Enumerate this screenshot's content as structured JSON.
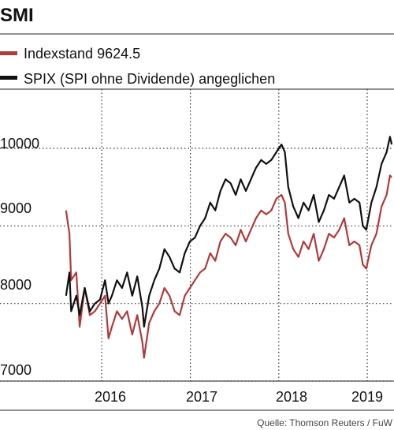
{
  "chart_data": {
    "type": "line",
    "title": "SMI",
    "xlabel": "",
    "ylabel": "",
    "ylim": [
      7000,
      10500
    ],
    "xlim": [
      "2015-08-01",
      "2019-04-15"
    ],
    "y_ticks": [
      "10000",
      "9000",
      "8000",
      "7000"
    ],
    "x_tick_labels": [
      "2016",
      "2017",
      "2018",
      "2019"
    ],
    "grid": "dotted",
    "legend_position": "top-left",
    "source": "Quelle: Thomson Reuters / FuW",
    "series": [
      {
        "name": "Indexstand 9624.5",
        "color": "#b03a3a",
        "points": [
          [
            "2015-08-07",
            9200
          ],
          [
            "2015-08-21",
            8900
          ],
          [
            "2015-08-28",
            8300
          ],
          [
            "2015-09-18",
            8400
          ],
          [
            "2015-10-02",
            7700
          ],
          [
            "2015-10-23",
            8200
          ],
          [
            "2015-11-13",
            7850
          ],
          [
            "2015-12-04",
            7900
          ],
          [
            "2015-12-25",
            8000
          ],
          [
            "2016-01-15",
            8100
          ],
          [
            "2016-01-29",
            7550
          ],
          [
            "2016-02-12",
            7700
          ],
          [
            "2016-03-04",
            7900
          ],
          [
            "2016-03-25",
            7800
          ],
          [
            "2016-04-15",
            7900
          ],
          [
            "2016-05-06",
            7600
          ],
          [
            "2016-05-27",
            7850
          ],
          [
            "2016-06-17",
            7500
          ],
          [
            "2016-06-24",
            7300
          ],
          [
            "2016-07-15",
            7750
          ],
          [
            "2016-08-05",
            7900
          ],
          [
            "2016-08-26",
            8000
          ],
          [
            "2016-09-16",
            8200
          ],
          [
            "2016-10-07",
            8100
          ],
          [
            "2016-10-28",
            7900
          ],
          [
            "2016-11-18",
            7850
          ],
          [
            "2016-12-09",
            8100
          ],
          [
            "2016-12-30",
            8200
          ],
          [
            "2017-01-20",
            8300
          ],
          [
            "2017-02-10",
            8400
          ],
          [
            "2017-03-03",
            8450
          ],
          [
            "2017-03-24",
            8650
          ],
          [
            "2017-04-14",
            8550
          ],
          [
            "2017-05-05",
            8800
          ],
          [
            "2017-05-26",
            8900
          ],
          [
            "2017-06-16",
            8850
          ],
          [
            "2017-07-07",
            8750
          ],
          [
            "2017-07-28",
            8950
          ],
          [
            "2017-08-18",
            8800
          ],
          [
            "2017-09-08",
            8950
          ],
          [
            "2017-09-29",
            9100
          ],
          [
            "2017-10-20",
            9200
          ],
          [
            "2017-11-10",
            9150
          ],
          [
            "2017-12-01",
            9200
          ],
          [
            "2017-12-22",
            9350
          ],
          [
            "2018-01-12",
            9400
          ],
          [
            "2018-01-26",
            9300
          ],
          [
            "2018-02-09",
            8900
          ],
          [
            "2018-03-02",
            8700
          ],
          [
            "2018-03-23",
            8600
          ],
          [
            "2018-04-13",
            8800
          ],
          [
            "2018-05-04",
            8700
          ],
          [
            "2018-05-25",
            8900
          ],
          [
            "2018-06-15",
            8550
          ],
          [
            "2018-07-06",
            8700
          ],
          [
            "2018-07-27",
            8900
          ],
          [
            "2018-08-17",
            8850
          ],
          [
            "2018-09-07",
            8950
          ],
          [
            "2018-09-28",
            9100
          ],
          [
            "2018-10-19",
            8750
          ],
          [
            "2018-11-09",
            8800
          ],
          [
            "2018-11-30",
            8750
          ],
          [
            "2018-12-14",
            8500
          ],
          [
            "2018-12-28",
            8450
          ],
          [
            "2019-01-18",
            8750
          ],
          [
            "2019-02-08",
            8900
          ],
          [
            "2019-03-01",
            9250
          ],
          [
            "2019-03-22",
            9400
          ],
          [
            "2019-04-05",
            9650
          ],
          [
            "2019-04-12",
            9624.5
          ]
        ]
      },
      {
        "name": "SPIX (SPI ohne Dividende) angeglichen",
        "color": "#111111",
        "points": [
          [
            "2015-08-07",
            8100
          ],
          [
            "2015-08-21",
            8400
          ],
          [
            "2015-08-28",
            7900
          ],
          [
            "2015-09-18",
            8100
          ],
          [
            "2015-10-02",
            7850
          ],
          [
            "2015-10-23",
            8200
          ],
          [
            "2015-11-13",
            7900
          ],
          [
            "2015-12-04",
            8000
          ],
          [
            "2015-12-25",
            8050
          ],
          [
            "2016-01-15",
            8300
          ],
          [
            "2016-01-29",
            8000
          ],
          [
            "2016-02-12",
            8100
          ],
          [
            "2016-03-04",
            8300
          ],
          [
            "2016-03-25",
            8200
          ],
          [
            "2016-04-15",
            8400
          ],
          [
            "2016-05-06",
            8100
          ],
          [
            "2016-05-27",
            8350
          ],
          [
            "2016-06-17",
            7950
          ],
          [
            "2016-06-24",
            7700
          ],
          [
            "2016-07-15",
            8100
          ],
          [
            "2016-08-05",
            8300
          ],
          [
            "2016-08-26",
            8450
          ],
          [
            "2016-09-16",
            8700
          ],
          [
            "2016-10-07",
            8600
          ],
          [
            "2016-10-28",
            8450
          ],
          [
            "2016-11-18",
            8400
          ],
          [
            "2016-12-09",
            8650
          ],
          [
            "2016-12-30",
            8800
          ],
          [
            "2017-01-20",
            8850
          ],
          [
            "2017-02-10",
            9000
          ],
          [
            "2017-03-03",
            9100
          ],
          [
            "2017-03-24",
            9300
          ],
          [
            "2017-04-14",
            9200
          ],
          [
            "2017-05-05",
            9450
          ],
          [
            "2017-05-26",
            9600
          ],
          [
            "2017-06-16",
            9550
          ],
          [
            "2017-07-07",
            9400
          ],
          [
            "2017-07-28",
            9600
          ],
          [
            "2017-08-18",
            9450
          ],
          [
            "2017-09-08",
            9600
          ],
          [
            "2017-09-29",
            9750
          ],
          [
            "2017-10-20",
            9850
          ],
          [
            "2017-11-10",
            9800
          ],
          [
            "2017-12-01",
            9850
          ],
          [
            "2017-12-22",
            9950
          ],
          [
            "2018-01-12",
            10050
          ],
          [
            "2018-01-26",
            9950
          ],
          [
            "2018-02-09",
            9500
          ],
          [
            "2018-03-02",
            9250
          ],
          [
            "2018-03-23",
            9100
          ],
          [
            "2018-04-13",
            9300
          ],
          [
            "2018-05-04",
            9200
          ],
          [
            "2018-05-25",
            9400
          ],
          [
            "2018-06-15",
            9050
          ],
          [
            "2018-07-06",
            9200
          ],
          [
            "2018-07-27",
            9400
          ],
          [
            "2018-08-17",
            9350
          ],
          [
            "2018-09-07",
            9500
          ],
          [
            "2018-09-28",
            9650
          ],
          [
            "2018-10-19",
            9300
          ],
          [
            "2018-11-09",
            9350
          ],
          [
            "2018-11-30",
            9300
          ],
          [
            "2018-12-14",
            9000
          ],
          [
            "2018-12-28",
            8950
          ],
          [
            "2019-01-18",
            9300
          ],
          [
            "2019-02-08",
            9500
          ],
          [
            "2019-03-01",
            9800
          ],
          [
            "2019-03-22",
            9950
          ],
          [
            "2019-04-05",
            10150
          ],
          [
            "2019-04-12",
            10050
          ]
        ]
      }
    ]
  }
}
